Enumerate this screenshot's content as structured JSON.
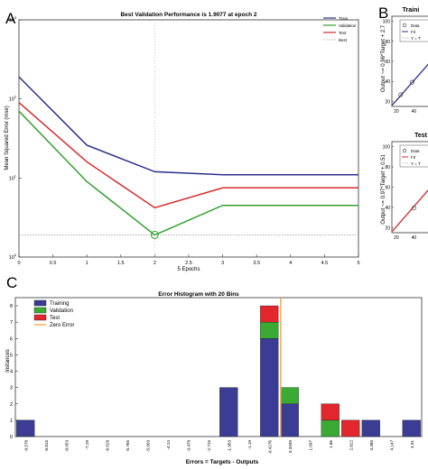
{
  "panel_labels": {
    "a": "A",
    "b": "B",
    "c": "C"
  },
  "chart_data": [
    {
      "id": "perf",
      "type": "line",
      "title": "Best Validation Performance is 1.9077 at epoch 2",
      "xlabel": "5 Epochs",
      "ylabel": "Mean Squared Error  (mse)",
      "yscale": "log",
      "xlim": [
        0,
        5
      ],
      "ylim": [
        1,
        1000
      ],
      "x_ticks": [
        "0",
        "0.5",
        "1",
        "1.5",
        "2",
        "2.5",
        "3",
        "3.5",
        "4",
        "4.5",
        "5"
      ],
      "y_ticks": [
        {
          "base": "10",
          "exp": "0"
        },
        {
          "base": "10",
          "exp": "1"
        },
        {
          "base": "10",
          "exp": "2"
        },
        {
          "base": "10",
          "exp": "3"
        }
      ],
      "legend_position": "top-right",
      "x": [
        0,
        1,
        2,
        3,
        4,
        5
      ],
      "series": [
        {
          "name": "Train",
          "color": "#2b2f8f",
          "values": [
            190,
            26,
            12,
            11,
            11,
            11
          ]
        },
        {
          "name": "Validation",
          "color": "#33a02c",
          "values": [
            70,
            9,
            1.9,
            4.5,
            4.5,
            4.5
          ]
        },
        {
          "name": "Test",
          "color": "#d62b2b",
          "values": [
            90,
            16,
            4.2,
            7.5,
            7.5,
            7.5
          ]
        },
        {
          "name": "Best",
          "color": "#9a9a9a",
          "style": "dotted",
          "value": 1.9077
        }
      ],
      "best_epoch": 2
    },
    {
      "id": "training",
      "type": "scatter",
      "title": "Traini",
      "ylabel": "Output ~= 0.96*Target + 2.7",
      "y_ticks": [
        "20",
        "40",
        "60",
        "80",
        "100"
      ],
      "x_ticks": [
        "20",
        "40"
      ],
      "legend": [
        {
          "name": "Data",
          "marker": "circle"
        },
        {
          "name": "Fit",
          "color": "#2b2f8f"
        },
        {
          "name": "Y = T",
          "style": "dotted"
        }
      ],
      "fit_color": "#2b2f8f",
      "points": [
        [
          25,
          26.7
        ],
        [
          38,
          39.2
        ]
      ]
    },
    {
      "id": "test",
      "type": "scatter",
      "title": "Test",
      "ylabel": "Output ~= 0.97*Target + 0.51",
      "y_ticks": [
        "20",
        "40",
        "60",
        "80",
        "100"
      ],
      "x_ticks": [
        "20",
        "40"
      ],
      "legend": [
        {
          "name": "Data",
          "marker": "circle"
        },
        {
          "name": "Fit",
          "color": "#d62b2b"
        },
        {
          "name": "Y = T",
          "style": "dotted"
        }
      ],
      "fit_color": "#d62b2b",
      "points": [
        [
          40,
          39.3
        ]
      ]
    },
    {
      "id": "hist",
      "type": "bar",
      "stacked": true,
      "title": "Error Histogram with 20 Bins",
      "xlabel": "Errors = Targets - Outputs",
      "ylabel": "Instances",
      "ylim": [
        0,
        8.5
      ],
      "y_ticks": [
        "0",
        "1",
        "2",
        "3",
        "4",
        "5",
        "6",
        "7",
        "8"
      ],
      "categories": [
        "-9.578",
        "-8.815",
        "-8.053",
        "-7.29",
        "-6.528",
        "-5.765",
        "-5.003",
        "-4.24",
        "-3.478",
        "-2.715",
        "-1.953",
        "-1.19",
        "-0.4276",
        "0.3349",
        "1.097",
        "1.86",
        "2.622",
        "3.385",
        "4.147",
        "4.91"
      ],
      "series": [
        {
          "name": "Training",
          "color": "#3a3d93",
          "values": [
            1,
            0,
            0,
            0,
            0,
            0,
            0,
            0,
            0,
            0,
            3,
            0,
            6,
            2,
            0,
            0,
            0,
            1,
            0,
            1
          ]
        },
        {
          "name": "Validation",
          "color": "#3aaa35",
          "values": [
            0,
            0,
            0,
            0,
            0,
            0,
            0,
            0,
            0,
            0,
            0,
            0,
            1,
            1,
            0,
            1,
            0,
            0,
            0,
            0
          ]
        },
        {
          "name": "Test",
          "color": "#e2262b",
          "values": [
            0,
            0,
            0,
            0,
            0,
            0,
            0,
            0,
            0,
            0,
            0,
            0,
            1,
            0,
            0,
            1,
            1,
            0,
            0,
            0
          ]
        }
      ],
      "zero_error": {
        "name": "Zero Error",
        "color": "#f5a33a",
        "x": 0
      },
      "legend_position": "top-left"
    }
  ]
}
